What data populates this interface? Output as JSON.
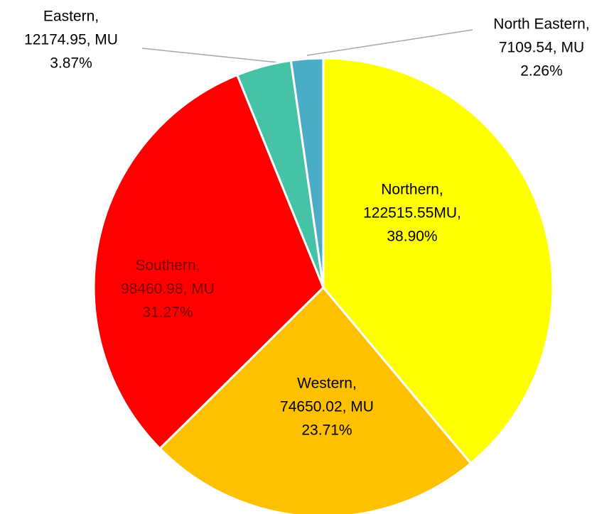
{
  "chart_data": {
    "type": "pie",
    "categories": [
      "Northern,",
      "Western,",
      "Southern,",
      "Eastern,",
      "North Eastern,"
    ],
    "values": [
      122515.55,
      74650.02,
      98460.98,
      12174.95,
      7109.54
    ],
    "value_labels": [
      "122515.55MU,",
      "74650.02, MU",
      "98460.98, MU",
      "12174.95, MU",
      "7109.54, MU"
    ],
    "percent_labels": [
      "38.90%",
      "23.71%",
      "31.27%",
      "3.87%",
      "2.26%"
    ],
    "colors": [
      "#ffff00",
      "#ffc000",
      "#ff0000",
      "#46c2a6",
      "#4bacc6"
    ]
  }
}
